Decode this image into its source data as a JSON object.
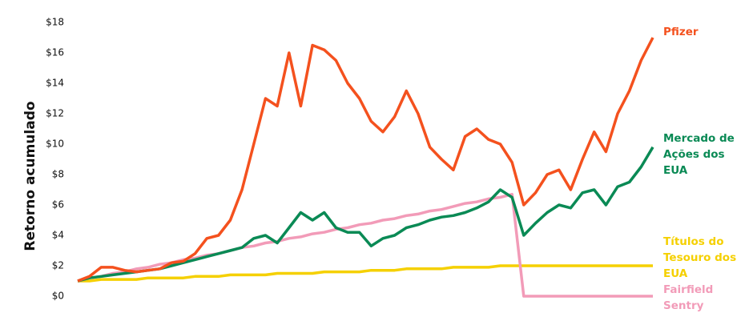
{
  "chart_data": {
    "type": "line",
    "y_axis_label": "Retorno acumulado",
    "ylim": [
      0,
      18
    ],
    "yticks": [
      {
        "value": 0,
        "label": "$0"
      },
      {
        "value": 2,
        "label": "$2"
      },
      {
        "value": 4,
        "label": "$4"
      },
      {
        "value": 6,
        "label": "$6"
      },
      {
        "value": 8,
        "label": "$8"
      },
      {
        "value": 10,
        "label": "$10"
      },
      {
        "value": 12,
        "label": "$12"
      },
      {
        "value": 14,
        "label": "$14"
      },
      {
        "value": 16,
        "label": "$16"
      },
      {
        "value": 18,
        "label": "$18"
      }
    ],
    "series": [
      {
        "name": "Pfizer",
        "color": "#f4511e",
        "values": [
          1.0,
          1.3,
          1.9,
          1.9,
          1.7,
          1.6,
          1.7,
          1.8,
          2.2,
          2.3,
          2.8,
          3.8,
          4.0,
          5.0,
          7.0,
          10.0,
          13.0,
          12.5,
          16.0,
          12.5,
          16.5,
          16.2,
          15.5,
          14.0,
          13.0,
          11.5,
          10.8,
          11.8,
          13.5,
          12.0,
          9.8,
          9.0,
          8.3,
          10.5,
          11.0,
          10.3,
          10.0,
          8.8,
          6.0,
          6.8,
          8.0,
          8.3,
          7.0,
          9.0,
          10.8,
          9.5,
          12.0,
          13.5,
          15.5,
          17.0
        ]
      },
      {
        "name": "Mercado de Ações dos EUA",
        "color": "#0a8a55",
        "values": [
          1.0,
          1.2,
          1.3,
          1.4,
          1.5,
          1.6,
          1.7,
          1.8,
          2.0,
          2.2,
          2.4,
          2.6,
          2.8,
          3.0,
          3.2,
          3.8,
          4.0,
          3.5,
          4.5,
          5.5,
          5.0,
          5.5,
          4.5,
          4.2,
          4.2,
          3.3,
          3.8,
          4.0,
          4.5,
          4.7,
          5.0,
          5.2,
          5.3,
          5.5,
          5.8,
          6.2,
          7.0,
          6.5,
          4.0,
          4.8,
          5.5,
          6.0,
          5.8,
          6.8,
          7.0,
          6.0,
          7.2,
          7.5,
          8.5,
          9.8
        ]
      },
      {
        "name": "Títulos do Tesouro dos EUA",
        "color": "#f5d000",
        "values": [
          1.0,
          1.0,
          1.1,
          1.1,
          1.1,
          1.1,
          1.2,
          1.2,
          1.2,
          1.2,
          1.3,
          1.3,
          1.3,
          1.4,
          1.4,
          1.4,
          1.4,
          1.5,
          1.5,
          1.5,
          1.5,
          1.6,
          1.6,
          1.6,
          1.6,
          1.7,
          1.7,
          1.7,
          1.8,
          1.8,
          1.8,
          1.8,
          1.9,
          1.9,
          1.9,
          1.9,
          2.0,
          2.0,
          2.0,
          2.0,
          2.0,
          2.0,
          2.0,
          2.0,
          2.0,
          2.0,
          2.0,
          2.0,
          2.0,
          2.0
        ]
      },
      {
        "name": "Fairfield Sentry",
        "color": "#f29bb8",
        "values": [
          1.0,
          1.2,
          1.3,
          1.5,
          1.6,
          1.8,
          1.9,
          2.1,
          2.2,
          2.4,
          2.5,
          2.7,
          2.8,
          3.0,
          3.2,
          3.3,
          3.5,
          3.6,
          3.8,
          3.9,
          4.1,
          4.2,
          4.4,
          4.5,
          4.7,
          4.8,
          5.0,
          5.1,
          5.3,
          5.4,
          5.6,
          5.7,
          5.9,
          6.1,
          6.2,
          6.4,
          6.5,
          6.7,
          0,
          0,
          0,
          0,
          0,
          0,
          0,
          0,
          0,
          0,
          0,
          0
        ]
      }
    ]
  }
}
